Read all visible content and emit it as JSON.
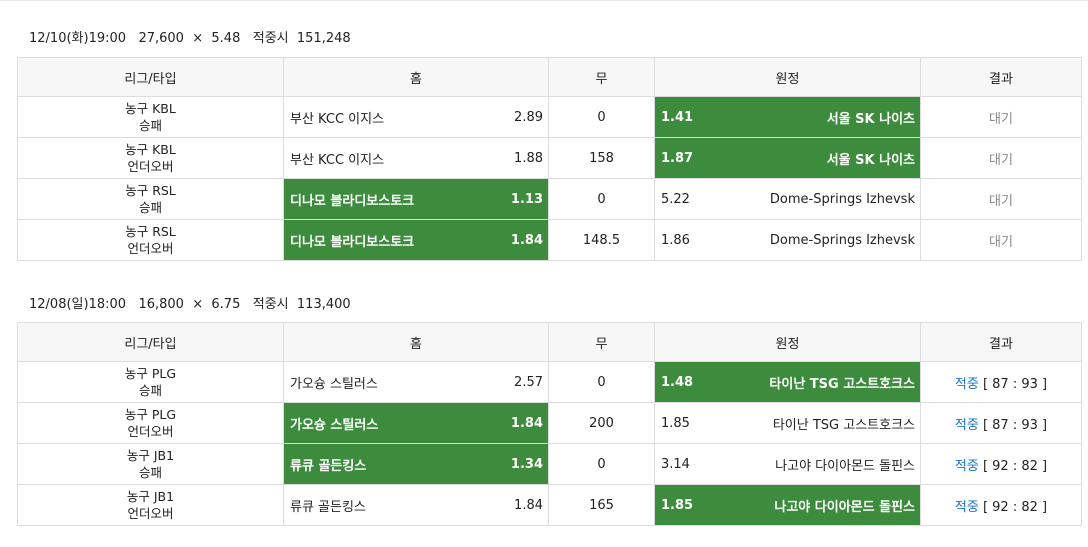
{
  "headers": {
    "league": "리그/타입",
    "home": "홈",
    "draw": "무",
    "away": "원정",
    "result": "결과"
  },
  "sections": [
    {
      "date": "12/10(화)19:00",
      "amount": "27,600",
      "times": "×",
      "odds": "5.48",
      "win_label": "적중시",
      "payout": "151,248",
      "rows": [
        {
          "league": "농구 KBL",
          "type": "승패",
          "home": "부산 KCC 이지스",
          "home_odds": "2.89",
          "draw": "0",
          "away_odds": "1.41",
          "away": "서울 SK 나이츠",
          "pick": "away",
          "result_status": "대기",
          "result_score": ""
        },
        {
          "league": "농구 KBL",
          "type": "언더오버",
          "home": "부산 KCC 이지스",
          "home_odds": "1.88",
          "draw": "158",
          "away_odds": "1.87",
          "away": "서울 SK 나이츠",
          "pick": "away",
          "result_status": "대기",
          "result_score": ""
        },
        {
          "league": "농구 RSL",
          "type": "승패",
          "home": "디나모 블라디보스토크",
          "home_odds": "1.13",
          "draw": "0",
          "away_odds": "5.22",
          "away": "Dome-Springs Izhevsk",
          "pick": "home",
          "result_status": "대기",
          "result_score": ""
        },
        {
          "league": "농구 RSL",
          "type": "언더오버",
          "home": "디나모 블라디보스토크",
          "home_odds": "1.84",
          "draw": "148.5",
          "away_odds": "1.86",
          "away": "Dome-Springs Izhevsk",
          "pick": "home",
          "result_status": "대기",
          "result_score": ""
        }
      ]
    },
    {
      "date": "12/08(일)18:00",
      "amount": "16,800",
      "times": "×",
      "odds": "6.75",
      "win_label": "적중시",
      "payout": "113,400",
      "rows": [
        {
          "league": "농구 PLG",
          "type": "승패",
          "home": "가오슝 스틸러스",
          "home_odds": "2.57",
          "draw": "0",
          "away_odds": "1.48",
          "away": "타이난 TSG 고스트호크스",
          "pick": "away",
          "result_status": "적중",
          "result_score": "[ 87 : 93 ]"
        },
        {
          "league": "농구 PLG",
          "type": "언더오버",
          "home": "가오슝 스틸러스",
          "home_odds": "1.84",
          "draw": "200",
          "away_odds": "1.85",
          "away": "타이난 TSG 고스트호크스",
          "pick": "home",
          "result_status": "적중",
          "result_score": "[ 87 : 93 ]"
        },
        {
          "league": "농구 JB1",
          "type": "승패",
          "home": "류큐 골든킹스",
          "home_odds": "1.34",
          "draw": "0",
          "away_odds": "3.14",
          "away": "나고야 다이아몬드 돌핀스",
          "pick": "home",
          "result_status": "적중",
          "result_score": "[ 92 : 82 ]"
        },
        {
          "league": "농구 JB1",
          "type": "언더오버",
          "home": "류큐 골든킹스",
          "home_odds": "1.84",
          "draw": "165",
          "away_odds": "1.85",
          "away": "나고야 다이아몬드 돌핀스",
          "pick": "away",
          "result_status": "적중",
          "result_score": "[ 92 : 82 ]"
        }
      ]
    }
  ],
  "colors": {
    "pick_bg": "#3d8b3d",
    "hit_text": "#1a73c8",
    "pending_text": "#888888"
  }
}
